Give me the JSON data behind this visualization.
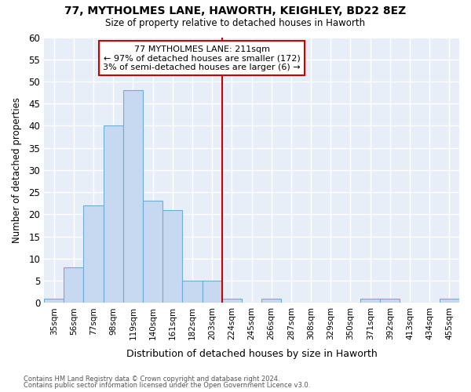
{
  "title1": "77, MYTHOLMES LANE, HAWORTH, KEIGHLEY, BD22 8EZ",
  "title2": "Size of property relative to detached houses in Haworth",
  "xlabel": "Distribution of detached houses by size in Haworth",
  "ylabel": "Number of detached properties",
  "bar_labels": [
    "35sqm",
    "56sqm",
    "77sqm",
    "98sqm",
    "119sqm",
    "140sqm",
    "161sqm",
    "182sqm",
    "203sqm",
    "224sqm",
    "245sqm",
    "266sqm",
    "287sqm",
    "308sqm",
    "329sqm",
    "350sqm",
    "371sqm",
    "392sqm",
    "413sqm",
    "434sqm",
    "455sqm"
  ],
  "bar_values": [
    1,
    8,
    22,
    40,
    48,
    23,
    21,
    5,
    5,
    1,
    0,
    1,
    0,
    0,
    0,
    0,
    1,
    1,
    0,
    0,
    1
  ],
  "bar_color": "#c6d9f0",
  "bar_edgecolor": "#6baed6",
  "vline_x": 8.5,
  "vline_color": "#cc0000",
  "annotation_text": "77 MYTHOLMES LANE: 211sqm\n← 97% of detached houses are smaller (172)\n3% of semi-detached houses are larger (6) →",
  "annotation_box_edgecolor": "#cc0000",
  "annotation_box_facecolor": "#ffffff",
  "ylim": [
    0,
    60
  ],
  "yticks": [
    0,
    5,
    10,
    15,
    20,
    25,
    30,
    35,
    40,
    45,
    50,
    55,
    60
  ],
  "bg_color": "#e8eef8",
  "grid_color": "#ffffff",
  "footer1": "Contains HM Land Registry data © Crown copyright and database right 2024.",
  "footer2": "Contains public sector information licensed under the Open Government Licence v3.0."
}
